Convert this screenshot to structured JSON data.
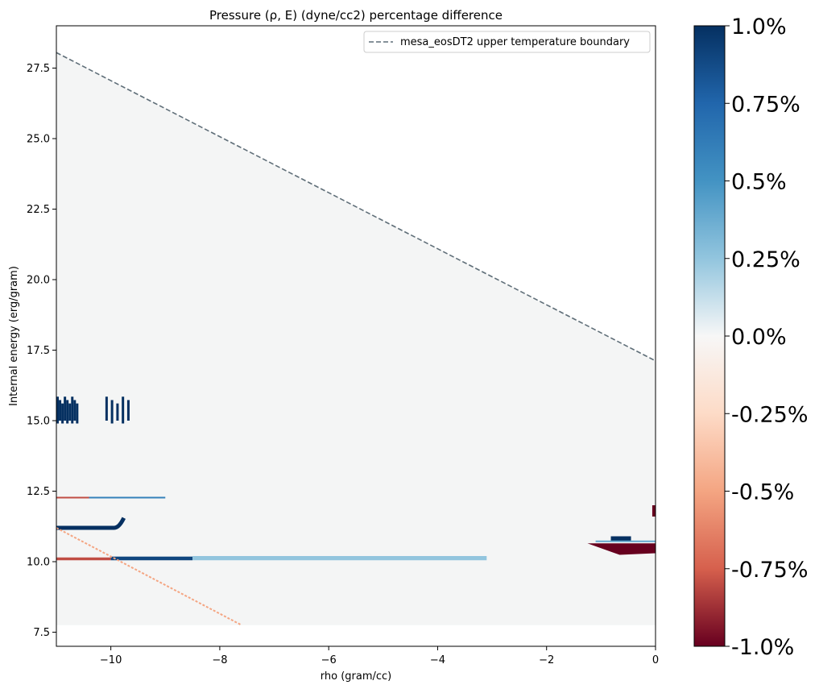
{
  "chart_data": {
    "type": "heatmap",
    "title": "Pressure (ρ, E) (dyne/cc2) percentage difference",
    "xlabel": "rho (gram/cc)",
    "ylabel": "Internal energy (erg/gram)",
    "xlim": [
      -11,
      0
    ],
    "ylim": [
      7.0,
      29.0
    ],
    "xticks": [
      -10,
      -8,
      -6,
      -4,
      -2,
      0
    ],
    "xtick_labels": [
      "−10",
      "−8",
      "−6",
      "−4",
      "−2",
      "0"
    ],
    "yticks": [
      7.5,
      10.0,
      12.5,
      15.0,
      17.5,
      20.0,
      22.5,
      25.0,
      27.5
    ],
    "ytick_labels": [
      "7.5",
      "10.0",
      "12.5",
      "15.0",
      "17.5",
      "20.0",
      "22.5",
      "25.0",
      "27.5"
    ],
    "grid": false,
    "legend": {
      "position": "top-right",
      "entries": [
        {
          "name": "mesa_eosDT2 upper temperature boundary",
          "style": "dashed",
          "color": "#5f6e78"
        }
      ]
    },
    "boundary_line": {
      "x": [
        -11,
        0
      ],
      "y": [
        28.05,
        17.12
      ]
    },
    "data_region": {
      "ymin": 7.75,
      "fill": "#f4f5f5"
    },
    "colorbar": {
      "cmap": "RdBu",
      "range": [
        -1.0,
        1.0
      ],
      "ticks": [
        1.0,
        0.75,
        0.5,
        0.25,
        0.0,
        -0.25,
        -0.5,
        -0.75,
        -1.0
      ],
      "tick_labels": [
        "1.0%",
        "0.75%",
        "0.5%",
        "0.25%",
        "0.0%",
        "-0.25%",
        "-0.5%",
        "-0.75%",
        "-1.0%"
      ]
    },
    "features": [
      {
        "desc": "blue streaks near E=15",
        "x": [
          -11,
          -9.6
        ],
        "y": [
          14.9,
          15.85
        ],
        "value": 1.0
      },
      {
        "desc": "red band",
        "x": [
          -11,
          -9.2
        ],
        "y": [
          12.25,
          12.3
        ],
        "value": -0.8
      },
      {
        "desc": "blue band",
        "x": [
          -10.4,
          -9.0
        ],
        "y": [
          12.25,
          12.3
        ],
        "value": 0.6
      },
      {
        "desc": "blue arc",
        "x": [
          -11,
          -9.85
        ],
        "y": [
          11.2,
          11.55
        ],
        "value": 1.0
      },
      {
        "desc": "red strip",
        "x": [
          -11,
          -10.0
        ],
        "y": [
          10.05,
          10.15
        ],
        "value": -0.8
      },
      {
        "desc": "blue strip",
        "x": [
          -10.0,
          -8.5
        ],
        "y": [
          10.05,
          10.18
        ],
        "value": 0.9
      },
      {
        "desc": "light blue strip",
        "x": [
          -8.5,
          -3.1
        ],
        "y": [
          10.05,
          10.2
        ],
        "value": 0.25
      },
      {
        "desc": "red diagonal",
        "x": [
          -11,
          -7.6
        ],
        "y": [
          11.2,
          7.75
        ],
        "value": -0.5
      },
      {
        "desc": "dark blue block",
        "x": [
          -0.82,
          -0.45
        ],
        "y": [
          10.7,
          10.9
        ],
        "value": 1.0
      },
      {
        "desc": "light blue band",
        "x": [
          -1.1,
          0
        ],
        "y": [
          10.7,
          10.75
        ],
        "value": 0.4
      },
      {
        "desc": "dark red wedge",
        "x": [
          -1.25,
          0
        ],
        "y": [
          10.3,
          10.65
        ],
        "value": -1.0
      },
      {
        "desc": "dark red block",
        "x": [
          -0.06,
          0
        ],
        "y": [
          11.6,
          12.0
        ],
        "value": -1.0
      }
    ]
  }
}
